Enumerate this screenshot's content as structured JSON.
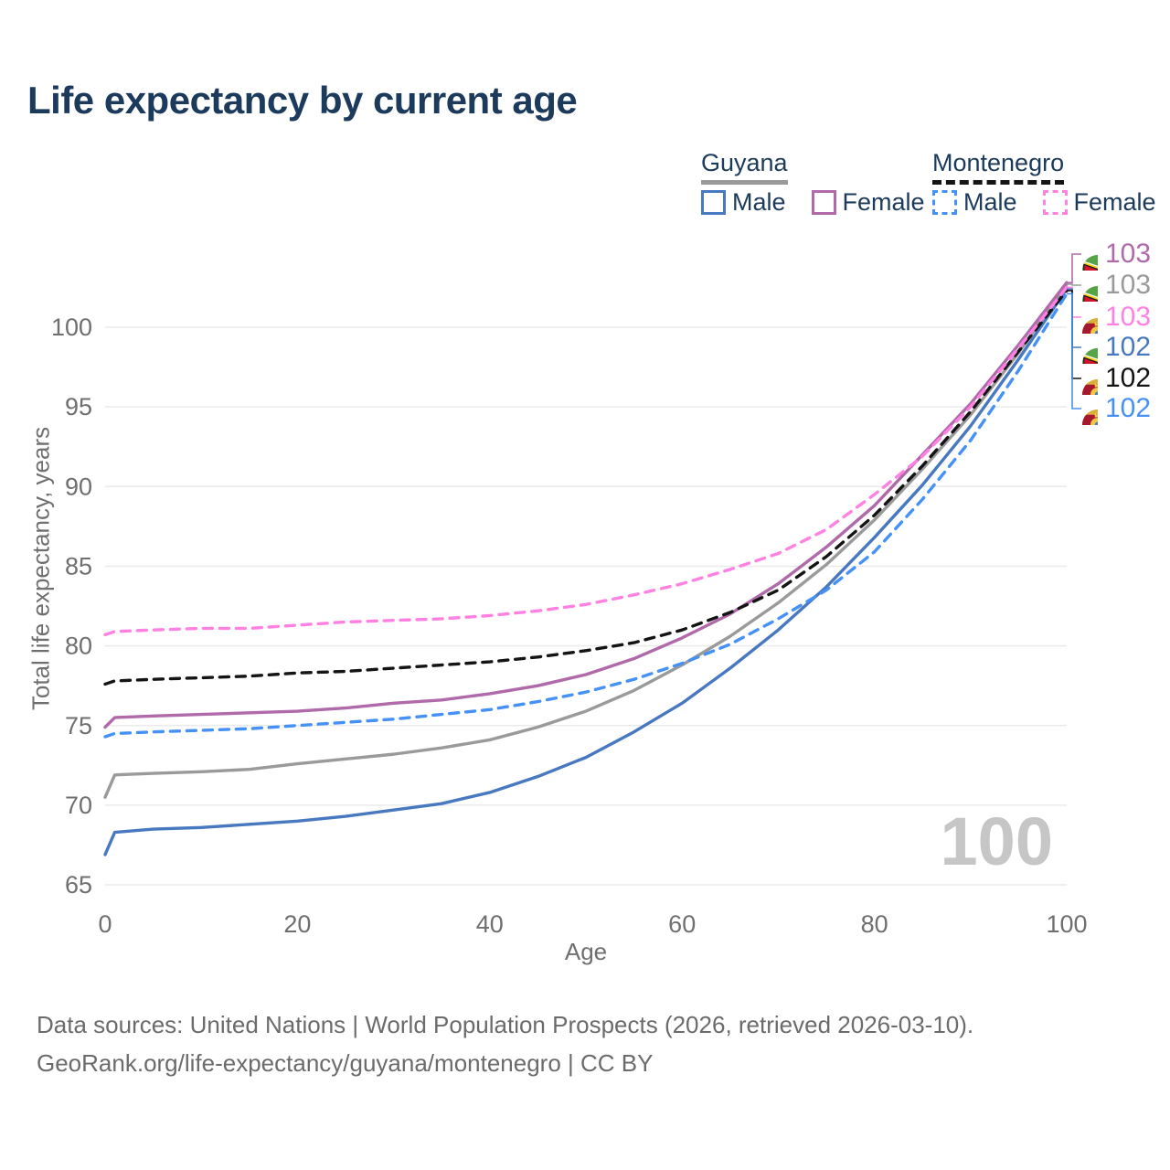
{
  "header": {
    "title": "Life expectancy by current age"
  },
  "legend": {
    "groups": [
      {
        "label": "Guyana",
        "line_style": "solid",
        "underline_color": "#9a9a9a",
        "items": [
          {
            "label": "Male",
            "color": "#4878c0",
            "dash": false
          },
          {
            "label": "Female",
            "color": "#b06aaa",
            "dash": false
          }
        ]
      },
      {
        "label": "Montenegro",
        "line_style": "dashed",
        "underline_color": "#141414",
        "items": [
          {
            "label": "Male",
            "color": "#4691f5",
            "dash": true
          },
          {
            "label": "Female",
            "color": "#ff82e3",
            "dash": true
          }
        ]
      }
    ]
  },
  "chart_data": {
    "type": "line",
    "title": "Life expectancy by current age",
    "xlabel": "Age",
    "ylabel": "Total life expectancy, years",
    "xlim": [
      0,
      100
    ],
    "ylim": [
      63.5,
      104
    ],
    "x_ticks": [
      0,
      20,
      40,
      60,
      80,
      100
    ],
    "y_ticks": [
      65,
      70,
      75,
      80,
      85,
      90,
      95,
      100
    ],
    "grid": "horizontal",
    "legend_position": "top-right",
    "x": [
      0,
      1,
      5,
      10,
      15,
      20,
      25,
      30,
      35,
      40,
      45,
      50,
      55,
      60,
      65,
      70,
      75,
      80,
      85,
      90,
      95,
      100
    ],
    "series": [
      {
        "name": "Guyana (both sexes)",
        "country": "Guyana",
        "color": "#9a9a9a",
        "dash": false,
        "values": [
          70.5,
          71.9,
          72.0,
          72.1,
          72.25,
          72.6,
          72.9,
          73.2,
          73.6,
          74.1,
          74.9,
          75.9,
          77.2,
          78.8,
          80.6,
          82.7,
          85.1,
          87.9,
          91.1,
          94.5,
          98.4,
          102.7
        ]
      },
      {
        "name": "Guyana Male",
        "country": "Guyana",
        "color": "#4878c0",
        "dash": false,
        "values": [
          66.9,
          68.3,
          68.5,
          68.6,
          68.8,
          69.0,
          69.3,
          69.7,
          70.1,
          70.8,
          71.8,
          73.0,
          74.6,
          76.4,
          78.6,
          81.0,
          83.7,
          86.8,
          90.1,
          93.8,
          98.0,
          102.4
        ]
      },
      {
        "name": "Montenegro Male",
        "country": "Montenegro",
        "color": "#4691f5",
        "dash": true,
        "values": [
          74.3,
          74.5,
          74.6,
          74.7,
          74.8,
          75.0,
          75.2,
          75.4,
          75.7,
          76.0,
          76.5,
          77.1,
          77.9,
          78.9,
          80.1,
          81.7,
          83.5,
          85.9,
          89.2,
          92.9,
          97.3,
          102.1
        ]
      },
      {
        "name": "Guyana Female",
        "country": "Guyana",
        "color": "#b06aaa",
        "dash": false,
        "values": [
          74.9,
          75.5,
          75.6,
          75.7,
          75.8,
          75.9,
          76.1,
          76.4,
          76.6,
          77.0,
          77.5,
          78.2,
          79.2,
          80.5,
          82.0,
          83.9,
          86.2,
          88.8,
          92.0,
          95.2,
          98.9,
          102.8
        ]
      },
      {
        "name": "Montenegro (both sexes)",
        "country": "Montenegro",
        "color": "#141414",
        "dash": true,
        "values": [
          77.6,
          77.8,
          77.9,
          78.0,
          78.1,
          78.3,
          78.4,
          78.6,
          78.8,
          79.0,
          79.3,
          79.7,
          80.2,
          81.0,
          82.1,
          83.5,
          85.6,
          88.2,
          91.3,
          94.7,
          98.5,
          102.3
        ]
      },
      {
        "name": "Montenegro Female",
        "country": "Montenegro",
        "color": "#ff82e3",
        "dash": true,
        "values": [
          80.7,
          80.9,
          81.0,
          81.1,
          81.1,
          81.3,
          81.5,
          81.6,
          81.7,
          81.9,
          82.2,
          82.6,
          83.2,
          83.9,
          84.8,
          85.8,
          87.3,
          89.5,
          91.9,
          95.0,
          98.7,
          102.5
        ]
      }
    ],
    "end_labels": [
      {
        "value": "103",
        "series": "Guyana Female",
        "flag": "guyana",
        "color": "#b06aaa"
      },
      {
        "value": "103",
        "series": "Guyana (both sexes)",
        "flag": "guyana",
        "color": "#9a9a9a"
      },
      {
        "value": "103",
        "series": "Montenegro Female",
        "flag": "montenegro",
        "color": "#ff82e3"
      },
      {
        "value": "102",
        "series": "Guyana Male",
        "flag": "guyana",
        "color": "#4878c0"
      },
      {
        "value": "102",
        "series": "Montenegro (both sexes)",
        "flag": "montenegro",
        "color": "#141414"
      },
      {
        "value": "102",
        "series": "Montenegro Male",
        "flag": "montenegro",
        "color": "#4691f5"
      }
    ],
    "watermark": "100"
  },
  "theme": {
    "grid_color": "#ebebeb",
    "tick_text_color": "#6f6f6f",
    "title_color": "#1c3a5c",
    "watermark_color": "#c6c6c6"
  },
  "footer": {
    "line1": "Data sources: United Nations | World Population Prospects (2026, retrieved 2026-03-10).",
    "line2": "GeoRank.org/life-expectancy/guyana/montenegro | CC BY"
  }
}
